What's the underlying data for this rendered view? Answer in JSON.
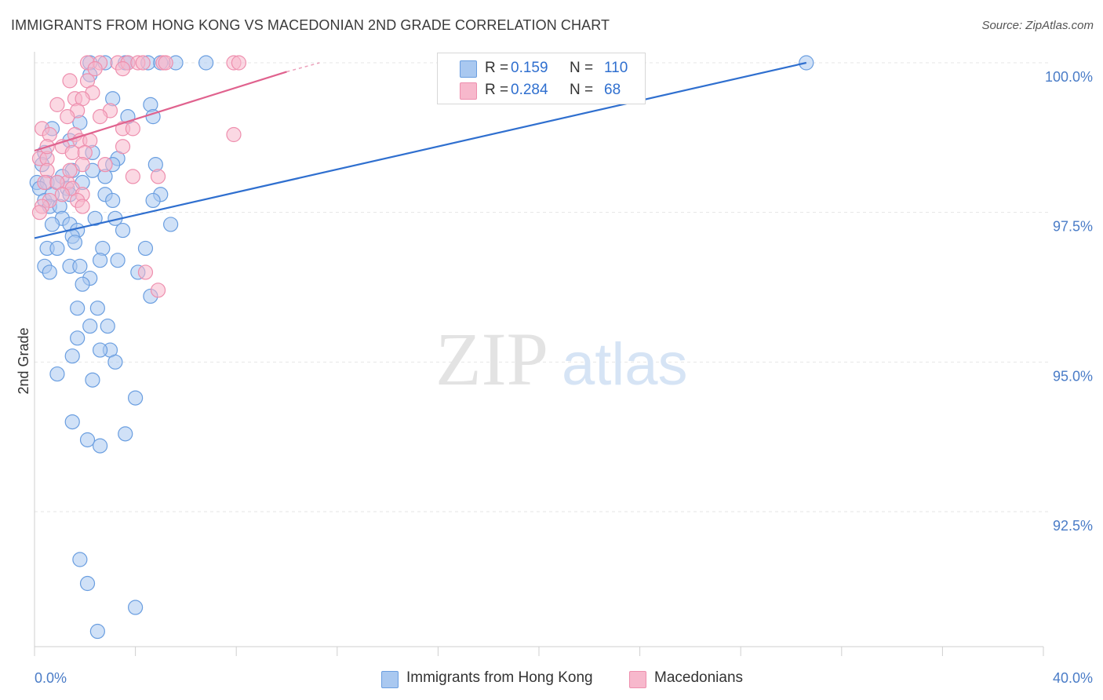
{
  "title": "IMMIGRANTS FROM HONG KONG VS MACEDONIAN 2ND GRADE CORRELATION CHART",
  "source": "Source: ZipAtlas.com",
  "watermark": {
    "zip": "ZIP",
    "atlas": "atlas"
  },
  "colors": {
    "blue_fill": "#a9c8f0",
    "blue_stroke": "#6a9ee0",
    "blue_line": "#2f6fcf",
    "pink_fill": "#f7b8cc",
    "pink_stroke": "#ee8fae",
    "pink_line": "#e0628e",
    "grid": "#e6e6e6",
    "tick_text": "#4a7cc7"
  },
  "legend_top": [
    {
      "r_label": "R = ",
      "r_value": "0.159",
      "n_label": "N = ",
      "n_value": "110"
    },
    {
      "r_label": "R = ",
      "r_value": "0.284",
      "n_label": "N = ",
      "n_value": "68"
    }
  ],
  "chart_data": {
    "type": "scatter",
    "title": "IMMIGRANTS FROM HONG KONG VS MACEDONIAN 2ND GRADE CORRELATION CHART",
    "xlabel": "",
    "ylabel": "2nd Grade",
    "xlim": [
      0,
      40
    ],
    "ylim": [
      90.0,
      100.5
    ],
    "x_tick_labels": [
      "0.0%",
      "40.0%"
    ],
    "y_ticks": [
      100.0,
      97.5,
      95.0,
      92.5
    ],
    "y_tick_labels": [
      "100.0%",
      "97.5%",
      "95.0%",
      "92.5%"
    ],
    "grid": "horizontal dashed",
    "legend_position": "top-center and bottom",
    "series": [
      {
        "name": "Immigrants from Hong Kong",
        "R": 0.159,
        "N": 110,
        "trend": {
          "x": [
            0.0,
            30.6
          ],
          "y": [
            97.07,
            100.0
          ]
        },
        "points": [
          [
            2.2,
            100.0
          ],
          [
            2.8,
            100.0
          ],
          [
            3.6,
            100.0
          ],
          [
            3.7,
            100.0
          ],
          [
            4.5,
            100.0
          ],
          [
            5.0,
            100.0
          ],
          [
            5.6,
            100.0
          ],
          [
            6.8,
            100.0
          ],
          [
            30.6,
            100.0
          ],
          [
            2.2,
            99.8
          ],
          [
            3.1,
            99.4
          ],
          [
            4.6,
            99.3
          ],
          [
            4.7,
            99.1
          ],
          [
            3.7,
            99.1
          ],
          [
            1.8,
            99.0
          ],
          [
            0.7,
            98.9
          ],
          [
            1.4,
            98.7
          ],
          [
            0.4,
            98.5
          ],
          [
            2.3,
            98.5
          ],
          [
            3.3,
            98.4
          ],
          [
            2.3,
            98.2
          ],
          [
            1.5,
            98.2
          ],
          [
            0.3,
            98.3
          ],
          [
            1.1,
            98.1
          ],
          [
            2.8,
            98.1
          ],
          [
            3.1,
            98.3
          ],
          [
            4.8,
            98.3
          ],
          [
            0.1,
            98.0
          ],
          [
            0.5,
            98.0
          ],
          [
            0.9,
            98.0
          ],
          [
            1.3,
            97.9
          ],
          [
            1.9,
            98.0
          ],
          [
            5.0,
            97.8
          ],
          [
            2.8,
            97.8
          ],
          [
            0.2,
            97.9
          ],
          [
            0.4,
            97.7
          ],
          [
            0.7,
            97.8
          ],
          [
            1.4,
            97.8
          ],
          [
            3.1,
            97.7
          ],
          [
            4.7,
            97.7
          ],
          [
            0.6,
            97.6
          ],
          [
            1.0,
            97.6
          ],
          [
            2.4,
            97.4
          ],
          [
            1.1,
            97.4
          ],
          [
            3.2,
            97.4
          ],
          [
            1.4,
            97.3
          ],
          [
            0.7,
            97.3
          ],
          [
            1.7,
            97.2
          ],
          [
            3.5,
            97.2
          ],
          [
            5.4,
            97.3
          ],
          [
            1.5,
            97.1
          ],
          [
            1.6,
            97.0
          ],
          [
            0.5,
            96.9
          ],
          [
            0.9,
            96.9
          ],
          [
            2.7,
            96.9
          ],
          [
            4.4,
            96.9
          ],
          [
            2.6,
            96.7
          ],
          [
            3.3,
            96.7
          ],
          [
            1.4,
            96.6
          ],
          [
            1.8,
            96.6
          ],
          [
            0.4,
            96.6
          ],
          [
            0.6,
            96.5
          ],
          [
            2.2,
            96.4
          ],
          [
            4.1,
            96.5
          ],
          [
            1.9,
            96.3
          ],
          [
            4.6,
            96.1
          ],
          [
            1.7,
            95.9
          ],
          [
            2.5,
            95.9
          ],
          [
            2.2,
            95.6
          ],
          [
            2.9,
            95.6
          ],
          [
            1.7,
            95.4
          ],
          [
            3.0,
            95.2
          ],
          [
            2.6,
            95.2
          ],
          [
            1.5,
            95.1
          ],
          [
            3.2,
            95.0
          ],
          [
            0.9,
            94.8
          ],
          [
            2.3,
            94.7
          ],
          [
            4.0,
            94.4
          ],
          [
            1.5,
            94.0
          ],
          [
            3.6,
            93.8
          ],
          [
            2.1,
            93.7
          ],
          [
            2.6,
            93.6
          ],
          [
            1.8,
            91.7
          ],
          [
            2.1,
            91.3
          ],
          [
            4.0,
            90.9
          ],
          [
            2.5,
            90.5
          ]
        ]
      },
      {
        "name": "Macedonians",
        "R": 0.284,
        "N": 68,
        "trend": {
          "x": [
            0.0,
            10.0
          ],
          "y": [
            98.53,
            99.85
          ]
        },
        "points": [
          [
            2.1,
            100.0
          ],
          [
            2.6,
            100.0
          ],
          [
            3.3,
            100.0
          ],
          [
            3.7,
            100.0
          ],
          [
            4.1,
            100.0
          ],
          [
            4.3,
            100.0
          ],
          [
            5.1,
            100.0
          ],
          [
            5.2,
            100.0
          ],
          [
            7.9,
            100.0
          ],
          [
            8.1,
            100.0
          ],
          [
            3.5,
            99.9
          ],
          [
            2.4,
            99.9
          ],
          [
            2.1,
            99.7
          ],
          [
            1.4,
            99.7
          ],
          [
            2.3,
            99.5
          ],
          [
            1.6,
            99.4
          ],
          [
            1.9,
            99.4
          ],
          [
            0.9,
            99.3
          ],
          [
            1.7,
            99.2
          ],
          [
            3.0,
            99.2
          ],
          [
            1.3,
            99.1
          ],
          [
            2.6,
            99.1
          ],
          [
            3.5,
            98.9
          ],
          [
            3.9,
            98.9
          ],
          [
            0.3,
            98.9
          ],
          [
            0.6,
            98.8
          ],
          [
            1.6,
            98.8
          ],
          [
            1.8,
            98.7
          ],
          [
            2.2,
            98.7
          ],
          [
            7.9,
            98.8
          ],
          [
            3.5,
            98.6
          ],
          [
            1.1,
            98.6
          ],
          [
            1.5,
            98.5
          ],
          [
            2.0,
            98.5
          ],
          [
            0.2,
            98.4
          ],
          [
            0.5,
            98.4
          ],
          [
            1.9,
            98.3
          ],
          [
            2.8,
            98.3
          ],
          [
            3.9,
            98.1
          ],
          [
            0.5,
            98.2
          ],
          [
            1.3,
            98.0
          ],
          [
            0.4,
            98.0
          ],
          [
            0.9,
            98.0
          ],
          [
            4.9,
            98.1
          ],
          [
            1.5,
            97.9
          ],
          [
            1.1,
            97.8
          ],
          [
            1.9,
            97.8
          ],
          [
            0.6,
            97.7
          ],
          [
            1.7,
            97.7
          ],
          [
            0.3,
            97.6
          ],
          [
            1.9,
            97.6
          ],
          [
            0.2,
            97.5
          ],
          [
            4.4,
            96.5
          ],
          [
            4.9,
            96.2
          ],
          [
            0.5,
            98.6
          ],
          [
            1.4,
            98.2
          ]
        ]
      }
    ]
  },
  "legend_bottom": [
    {
      "label": "Immigrants from Hong Kong"
    },
    {
      "label": "Macedonians"
    }
  ]
}
